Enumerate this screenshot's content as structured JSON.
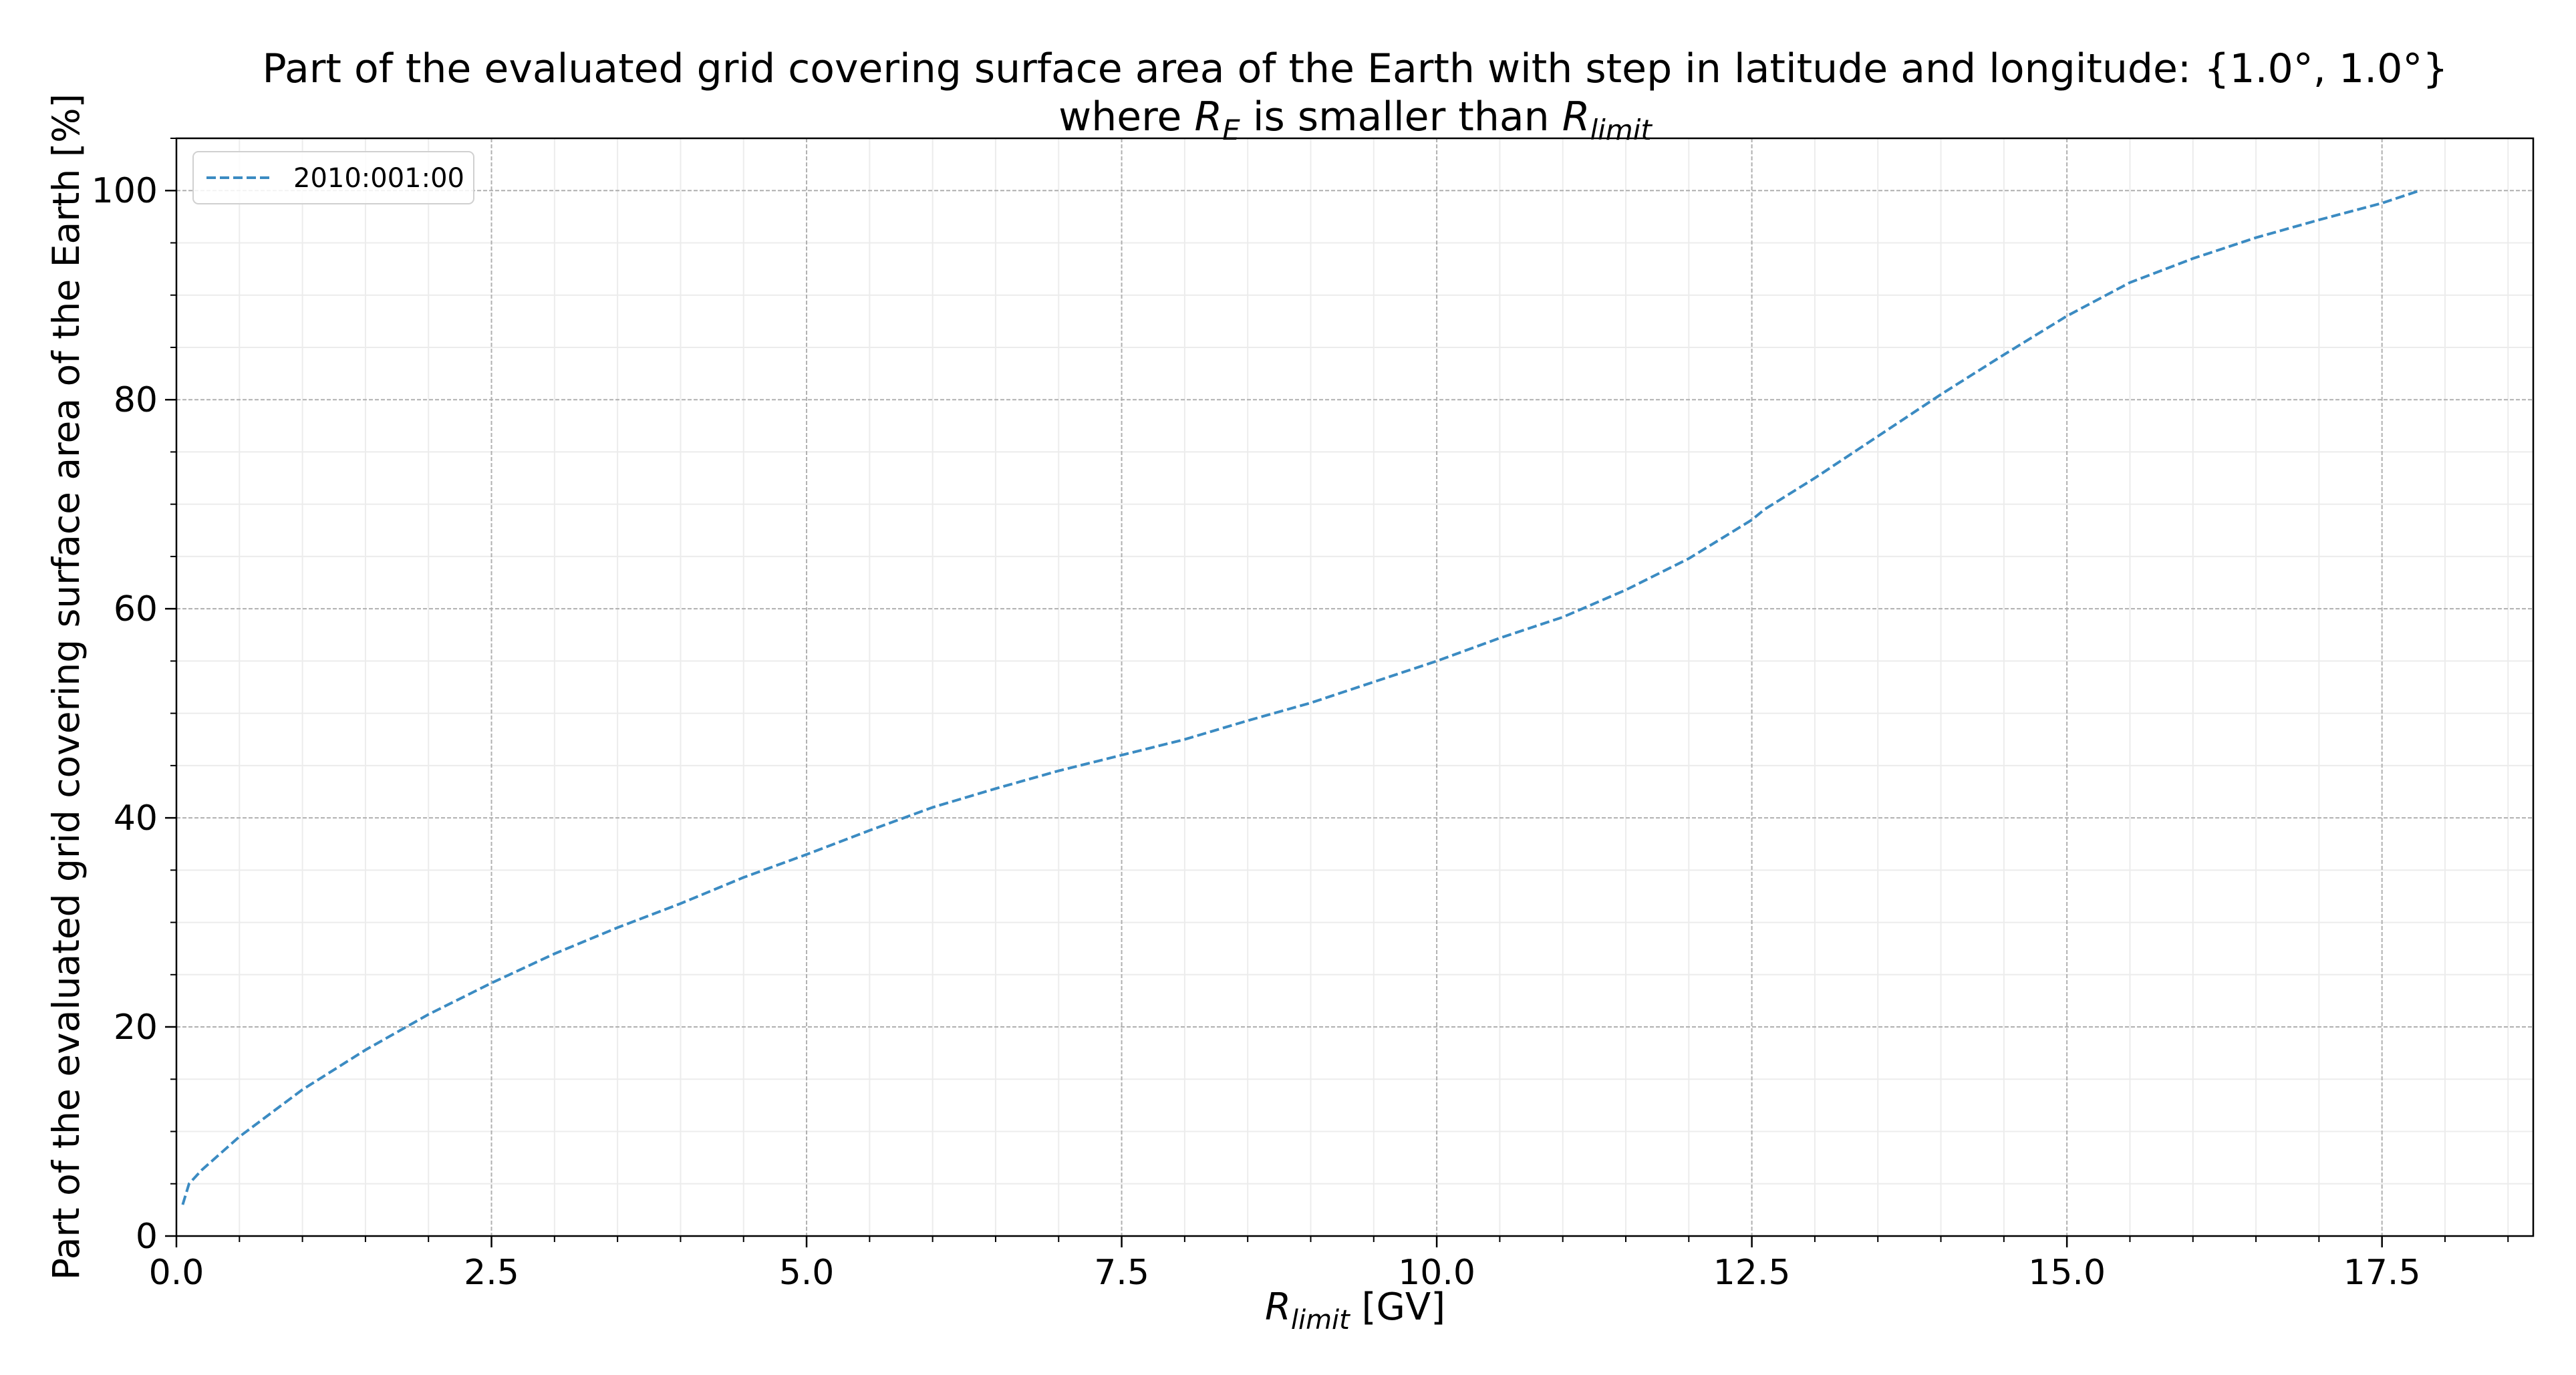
{
  "chart_data": {
    "type": "line",
    "title": {
      "line1": "Part of the evaluated grid covering surface area of the Earth with step in latitude and longitude: {1.0°, 1.0°}",
      "line2": [
        "where ",
        "R",
        "E",
        " is smaller than ",
        "R",
        "limit"
      ]
    },
    "xlabel": [
      "R",
      "limit",
      " [GV]"
    ],
    "ylabel": "Part of the evaluated grid covering surface area of the Earth  [%]",
    "legend": "upper left",
    "grid": true,
    "minor_grid": true,
    "xlim": [
      0,
      18.7
    ],
    "ylim": [
      0,
      105
    ],
    "xticks": [
      {
        "value": 0,
        "label": "0.0"
      },
      2.5,
      {
        "value": 5,
        "label": "5.0"
      },
      7.5,
      {
        "value": 10,
        "label": "10.0"
      },
      12.5,
      {
        "value": 15,
        "label": "15.0"
      },
      17.5
    ],
    "yticks": [
      0,
      20,
      40,
      60,
      80,
      100
    ],
    "xminorticks": [
      0.5,
      1,
      1.5,
      2,
      3,
      3.5,
      4,
      4.5,
      5.5,
      6,
      6.5,
      7,
      8,
      8.5,
      9,
      9.5,
      10.5,
      11,
      11.5,
      12,
      13,
      13.5,
      14,
      14.5,
      15.5,
      16,
      16.5,
      17,
      18,
      18.5
    ],
    "yminorticks": [
      5,
      10,
      15,
      25,
      30,
      35,
      45,
      50,
      55,
      65,
      70,
      75,
      85,
      90,
      95,
      105
    ],
    "series": [
      {
        "name": "2010:001:00",
        "color": "#3b8bc2",
        "line_style": "dashed",
        "x": [
          0.05,
          0.1,
          0.2,
          0.5,
          1,
          1.5,
          2,
          2.5,
          3,
          3.5,
          4,
          4.5,
          5,
          5.5,
          6,
          6.5,
          7,
          7.5,
          8,
          8.5,
          9,
          9.5,
          10,
          10.5,
          11,
          11.5,
          12,
          12.5,
          12.6,
          13,
          13.5,
          14,
          14.5,
          15,
          15.5,
          16,
          16.5,
          17,
          17.5,
          17.8
        ],
        "values": [
          3,
          5,
          6.3,
          9.5,
          14,
          17.8,
          21.2,
          24.2,
          27,
          29.5,
          31.8,
          34.3,
          36.5,
          38.8,
          41,
          42.8,
          44.5,
          46,
          47.5,
          49.3,
          51,
          53,
          55,
          57.2,
          59.2,
          61.8,
          64.8,
          68.5,
          69.5,
          72.5,
          76.5,
          80.5,
          84.3,
          88,
          91.2,
          93.5,
          95.5,
          97.2,
          98.8,
          100
        ]
      }
    ]
  }
}
